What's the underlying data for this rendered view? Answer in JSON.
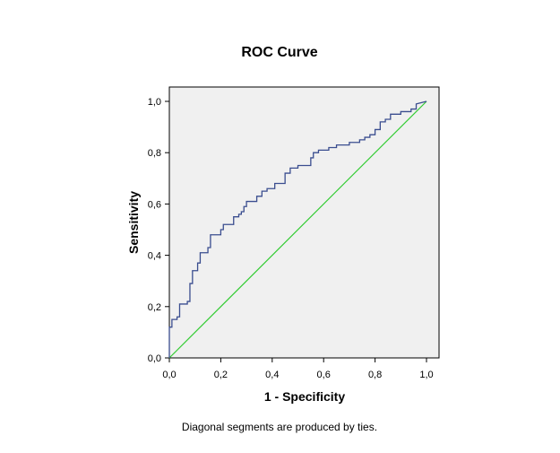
{
  "chart_data": {
    "type": "line",
    "title": "ROC Curve",
    "xlabel": "1 - Specificity",
    "ylabel": "Sensitivity",
    "footnote": "Diagonal segments are produced by ties.",
    "xlim": [
      0,
      1
    ],
    "ylim": [
      0,
      1
    ],
    "grid": false,
    "x_ticks": [
      0,
      0.2,
      0.4,
      0.6,
      0.8,
      1.0
    ],
    "y_ticks": [
      0,
      0.2,
      0.4,
      0.6,
      0.8,
      1.0
    ],
    "x_tick_labels": [
      "0,0",
      "0,2",
      "0,4",
      "0,6",
      "0,8",
      "1,0"
    ],
    "y_tick_labels": [
      "0,0",
      "0,2",
      "0,4",
      "0,6",
      "0,8",
      "1,0"
    ],
    "plot_background": "#f0f0f0",
    "series": [
      {
        "color": "#3a4d8f",
        "x": [
          0,
          0,
          0.01,
          0.01,
          0.03,
          0.03,
          0.04,
          0.04,
          0.07,
          0.07,
          0.08,
          0.08,
          0.09,
          0.09,
          0.11,
          0.11,
          0.12,
          0.12,
          0.15,
          0.15,
          0.16,
          0.16,
          0.2,
          0.2,
          0.21,
          0.21,
          0.25,
          0.25,
          0.27,
          0.27,
          0.28,
          0.28,
          0.29,
          0.29,
          0.3,
          0.3,
          0.34,
          0.34,
          0.36,
          0.36,
          0.38,
          0.38,
          0.41,
          0.41,
          0.45,
          0.45,
          0.47,
          0.47,
          0.5,
          0.5,
          0.55,
          0.55,
          0.56,
          0.56,
          0.58,
          0.58,
          0.62,
          0.62,
          0.65,
          0.65,
          0.7,
          0.7,
          0.74,
          0.74,
          0.76,
          0.76,
          0.78,
          0.78,
          0.8,
          0.8,
          0.82,
          0.82,
          0.84,
          0.84,
          0.86,
          0.86,
          0.9,
          0.9,
          0.94,
          0.94,
          0.96,
          0.96,
          1.0
        ],
        "y": [
          0,
          0.12,
          0.12,
          0.15,
          0.15,
          0.16,
          0.16,
          0.21,
          0.21,
          0.22,
          0.22,
          0.29,
          0.29,
          0.34,
          0.34,
          0.37,
          0.37,
          0.41,
          0.41,
          0.43,
          0.43,
          0.48,
          0.48,
          0.5,
          0.5,
          0.52,
          0.52,
          0.55,
          0.55,
          0.56,
          0.56,
          0.57,
          0.57,
          0.59,
          0.59,
          0.61,
          0.61,
          0.63,
          0.63,
          0.65,
          0.65,
          0.66,
          0.66,
          0.68,
          0.68,
          0.72,
          0.72,
          0.74,
          0.74,
          0.75,
          0.75,
          0.78,
          0.78,
          0.8,
          0.8,
          0.81,
          0.81,
          0.82,
          0.82,
          0.83,
          0.83,
          0.84,
          0.84,
          0.85,
          0.85,
          0.86,
          0.86,
          0.87,
          0.87,
          0.89,
          0.89,
          0.92,
          0.92,
          0.93,
          0.93,
          0.95,
          0.95,
          0.96,
          0.96,
          0.97,
          0.97,
          0.99,
          1.0
        ]
      },
      {
        "color": "#33cc33",
        "x": [
          0,
          1
        ],
        "y": [
          0,
          1
        ]
      }
    ]
  }
}
